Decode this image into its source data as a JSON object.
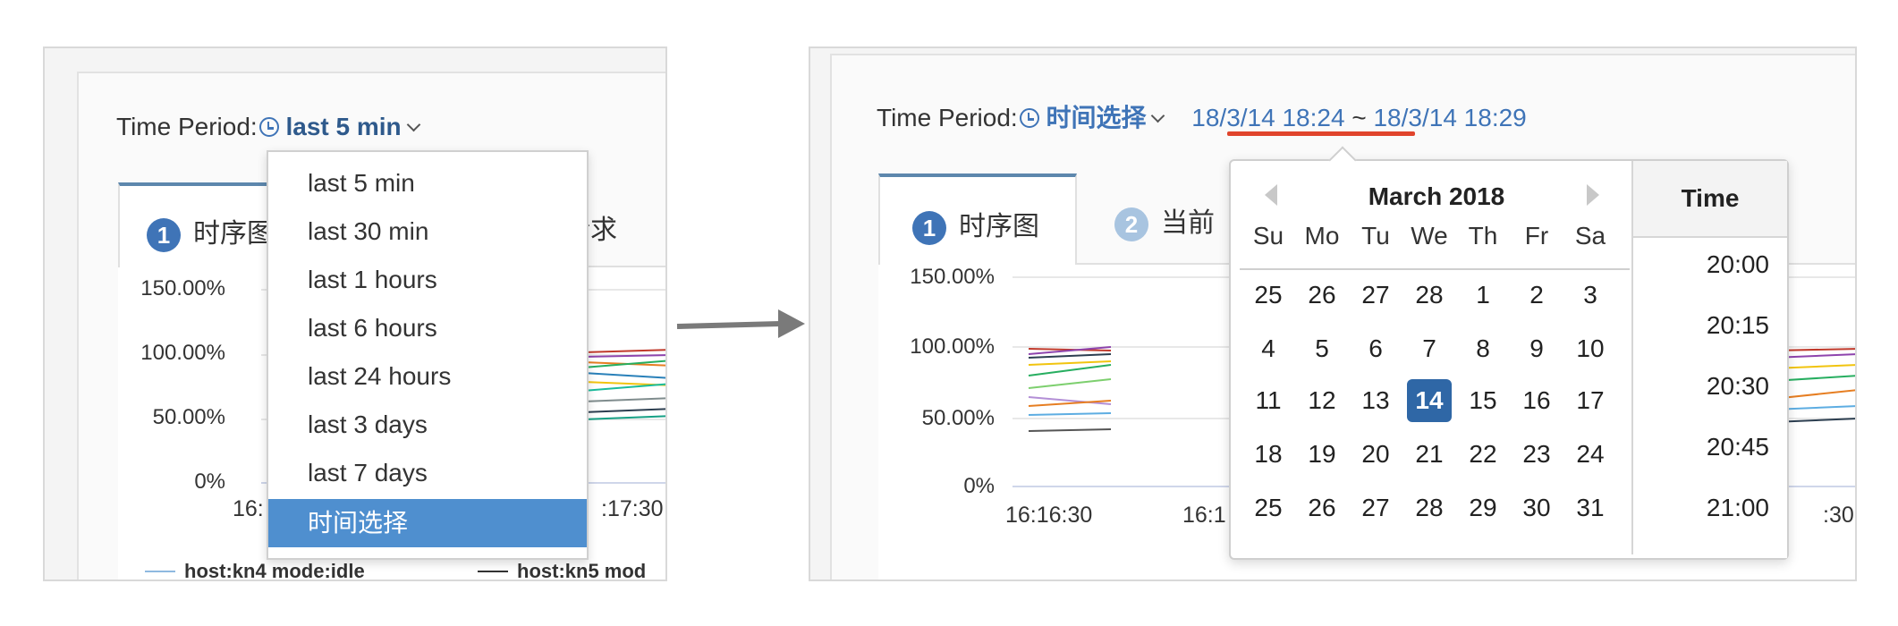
{
  "left_panel": {
    "time_period_label": "Time Period:",
    "time_period_value": "last 5 min",
    "tabs": [
      {
        "num": "1",
        "label": "时序图"
      },
      {
        "num": "",
        "label": "请求"
      }
    ],
    "y_ticks": [
      "150.00%",
      "100.00%",
      "50.00%",
      "0%"
    ],
    "x_ticks": [
      "16:",
      ":17:30"
    ],
    "dropdown_items": [
      "last 5 min",
      "last 30 min",
      "last 1 hours",
      "last 6 hours",
      "last 24 hours",
      "last 3 days",
      "last 7 days",
      "时间选择"
    ],
    "dropdown_selected": "时间选择",
    "legend": [
      "host:kn4 mode:idle",
      "host:kn5 mod"
    ]
  },
  "right_panel": {
    "time_period_label": "Time Period:",
    "time_period_value": "时间选择",
    "range_start": "18/3/14 18:24",
    "range_sep": "~",
    "range_end": "18/3/14 18:29",
    "tabs": [
      {
        "num": "1",
        "label": "时序图"
      },
      {
        "num": "2",
        "label": "当前"
      }
    ],
    "y_ticks": [
      "150.00%",
      "100.00%",
      "50.00%",
      "0%"
    ],
    "x_ticks": [
      "16:16:30",
      "16:1",
      ":30"
    ],
    "calendar": {
      "title": "March 2018",
      "weekdays": [
        "Su",
        "Mo",
        "Tu",
        "We",
        "Th",
        "Fr",
        "Sa"
      ],
      "weeks": [
        [
          "25",
          "26",
          "27",
          "28",
          "1",
          "2",
          "3"
        ],
        [
          "4",
          "5",
          "6",
          "7",
          "8",
          "9",
          "10"
        ],
        [
          "11",
          "12",
          "13",
          "14",
          "15",
          "16",
          "17"
        ],
        [
          "18",
          "19",
          "20",
          "21",
          "22",
          "23",
          "24"
        ],
        [
          "25",
          "26",
          "27",
          "28",
          "29",
          "30",
          "31"
        ]
      ],
      "selected_day": "14"
    },
    "time_list": {
      "header": "Time",
      "items": [
        "20:00",
        "20:15",
        "20:30",
        "20:45",
        "21:00"
      ]
    }
  },
  "colors": {
    "accent": "#3f74b7",
    "selected_item": "#4f8fcf",
    "selected_day": "#2f67a6",
    "highlight_underline": "#e0442c",
    "arrow": "#7a7a7a"
  }
}
